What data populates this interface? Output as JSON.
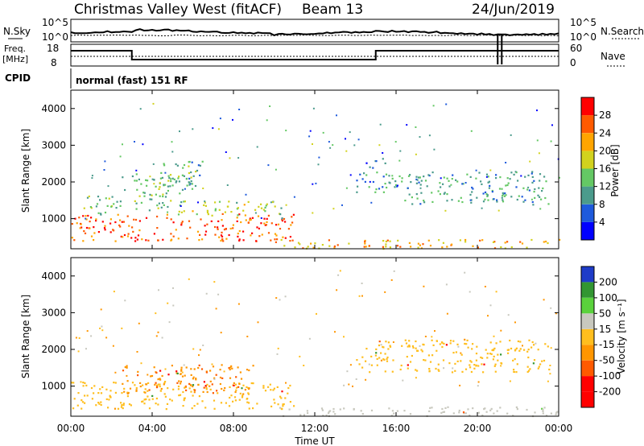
{
  "header": {
    "title": "Christmas Valley West (fitACF)",
    "beam": "Beam 13",
    "date": "24/Jun/2019"
  },
  "strip_labels": {
    "nsky": "N.Sky",
    "nsky_tick_top": "10^5",
    "nsky_tick_bottom": "10^0",
    "nsearch": "N.Search",
    "nsearch_tick_top": "10^5",
    "nsearch_tick_bottom": "10^0",
    "freq_line1": "Freq.",
    "freq_line2": "[MHz]",
    "freq_tick_top": "18",
    "freq_tick_bottom": "8",
    "nave": "Nave",
    "nave_tick_top": "60",
    "nave_tick_bottom": "0",
    "cpid": "CPID",
    "cpid_value": "normal (fast) 151 RF"
  },
  "colors": {
    "power_scale": [
      "#0000ff",
      "#1e5adc",
      "#4b9b8c",
      "#64c864",
      "#d2d21e",
      "#ffa500",
      "#ff5a00",
      "#ff0000"
    ],
    "velocity_scale": [
      "#ff0000",
      "#ff5a00",
      "#ff9600",
      "#ffbe1e",
      "#c8c8be",
      "#5ad23c",
      "#329632",
      "#1e3cc8"
    ],
    "ground_scatter": "#c8c8be"
  },
  "chart_data": [
    {
      "type": "heatmap",
      "name": "power",
      "ylabel": "Slant Range [km]",
      "x_ticks": [
        "00:00",
        "04:00",
        "08:00",
        "12:00",
        "16:00",
        "20:00",
        "00:00"
      ],
      "y_ticks": [
        "1000",
        "2000",
        "3000",
        "4000"
      ],
      "x_range_hours": [
        0,
        24
      ],
      "y_range_km": [
        180,
        4500
      ],
      "colorbar": {
        "label": "Power [dB]",
        "ticks": [
          "4",
          "8",
          "12",
          "16",
          "20",
          "24",
          "28"
        ],
        "range": [
          0,
          32
        ]
      },
      "regions": [
        {
          "t": [
            0.0,
            11.0
          ],
          "r": [
            400,
            1150
          ],
          "value": 26
        },
        {
          "t": [
            0.5,
            2.5
          ],
          "r": [
            1100,
            1650
          ],
          "value": 14
        },
        {
          "t": [
            3.0,
            5.0
          ],
          "r": [
            1250,
            1700
          ],
          "value": 13
        },
        {
          "t": [
            4.5,
            6.5
          ],
          "r": [
            1900,
            2600
          ],
          "value": 12
        },
        {
          "t": [
            2.5,
            6.0
          ],
          "r": [
            1600,
            2300
          ],
          "value": 13
        },
        {
          "t": [
            5.0,
            10.5
          ],
          "r": [
            1100,
            1500
          ],
          "value": 16
        },
        {
          "t": [
            10.0,
            24.0
          ],
          "r": [
            200,
            450
          ],
          "value": 21
        },
        {
          "t": [
            14.0,
            16.0
          ],
          "r": [
            1700,
            2300
          ],
          "value": 11
        },
        {
          "t": [
            16.0,
            23.5
          ],
          "r": [
            1400,
            2300
          ],
          "value": 11
        },
        {
          "t": [
            14.5,
            15.5
          ],
          "r": [
            2400,
            2700
          ],
          "value": 8
        }
      ]
    },
    {
      "type": "heatmap",
      "name": "velocity",
      "ylabel": "Slant Range [km]",
      "xlabel": "Time UT",
      "x_ticks": [
        "00:00",
        "04:00",
        "08:00",
        "12:00",
        "16:00",
        "20:00",
        "00:00"
      ],
      "y_ticks": [
        "1000",
        "2000",
        "3000",
        "4000"
      ],
      "x_range_hours": [
        0,
        24
      ],
      "y_range_km": [
        180,
        4500
      ],
      "colorbar": {
        "label": "Velocity [m s⁻¹]",
        "ticks": [
          "-200",
          "-100",
          "-50",
          "-15",
          "15",
          "50",
          "100",
          "200"
        ]
      },
      "regions": [
        {
          "t": [
            0.0,
            11.0
          ],
          "r": [
            400,
            1150
          ],
          "value": 0
        },
        {
          "t": [
            2.5,
            9.0
          ],
          "r": [
            800,
            1600
          ],
          "value": -40
        },
        {
          "t": [
            10.0,
            24.0
          ],
          "r": [
            200,
            450
          ],
          "value": 30
        },
        {
          "t": [
            14.0,
            23.5
          ],
          "r": [
            1400,
            2300
          ],
          "value": 0
        }
      ]
    }
  ]
}
